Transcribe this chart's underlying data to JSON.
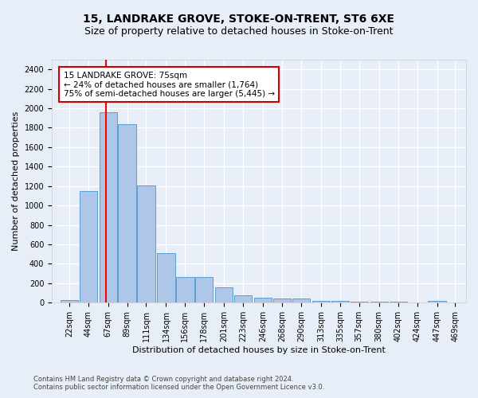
{
  "title": "15, LANDRAKE GROVE, STOKE-ON-TRENT, ST6 6XE",
  "subtitle": "Size of property relative to detached houses in Stoke-on-Trent",
  "xlabel": "Distribution of detached houses by size in Stoke-on-Trent",
  "ylabel": "Number of detached properties",
  "footer1": "Contains HM Land Registry data © Crown copyright and database right 2024.",
  "footer2": "Contains public sector information licensed under the Open Government Licence v3.0.",
  "property_size": 75,
  "property_label": "15 LANDRAKE GROVE: 75sqm",
  "annotation_line1": "← 24% of detached houses are smaller (1,764)",
  "annotation_line2": "75% of semi-detached houses are larger (5,445) →",
  "bin_starts": [
    22,
    44,
    67,
    89,
    111,
    134,
    156,
    178,
    201,
    223,
    246,
    268,
    290,
    313,
    335,
    357,
    380,
    402,
    424,
    447
  ],
  "bin_labels": [
    "22sqm",
    "44sqm",
    "67sqm",
    "89sqm",
    "111sqm",
    "134sqm",
    "156sqm",
    "178sqm",
    "201sqm",
    "223sqm",
    "246sqm",
    "268sqm",
    "290sqm",
    "313sqm",
    "335sqm",
    "357sqm",
    "380sqm",
    "402sqm",
    "424sqm",
    "447sqm",
    "469sqm"
  ],
  "bar_heights": [
    30,
    1150,
    1960,
    1840,
    1210,
    510,
    265,
    265,
    155,
    80,
    50,
    45,
    40,
    22,
    18,
    8,
    8,
    8,
    5,
    20
  ],
  "bar_color": "#aec6e8",
  "bar_edge_color": "#5a9fd4",
  "red_line_x": 75,
  "annotation_box_color": "#ffffff",
  "annotation_box_edge": "#cc0000",
  "ylim": [
    0,
    2500
  ],
  "yticks": [
    0,
    200,
    400,
    600,
    800,
    1000,
    1200,
    1400,
    1600,
    1800,
    2000,
    2200,
    2400
  ],
  "background_color": "#e8eef7",
  "grid_color": "#ffffff",
  "title_fontsize": 10,
  "subtitle_fontsize": 9,
  "axis_label_fontsize": 8,
  "tick_fontsize": 7,
  "annotation_fontsize": 7.5,
  "footer_fontsize": 6
}
